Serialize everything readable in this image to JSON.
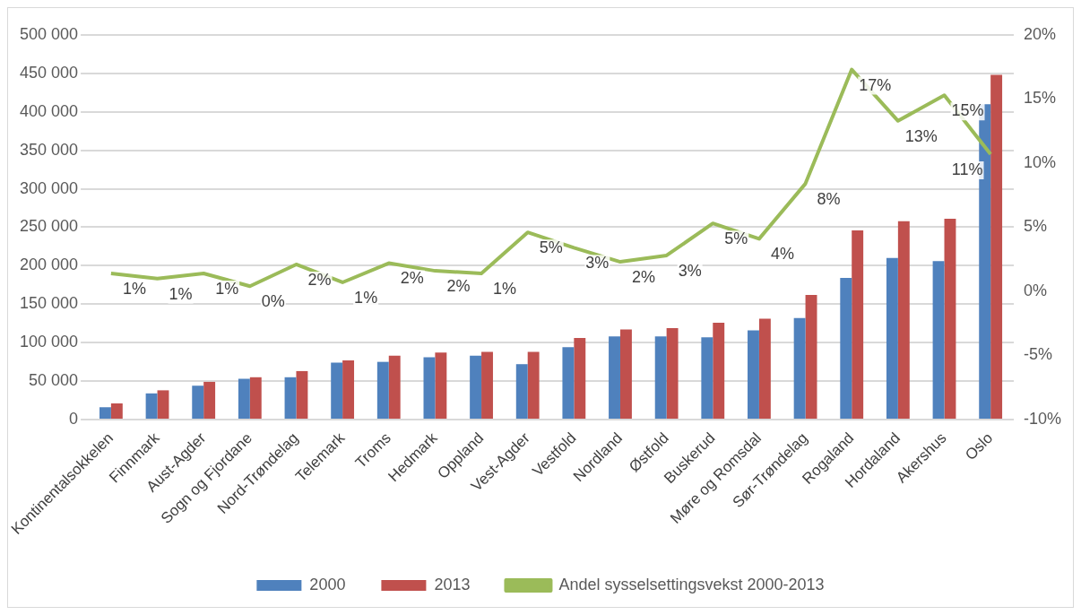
{
  "chart_data": {
    "type": "bar",
    "categories": [
      "Kontinentalsokkelen",
      "Finnmark",
      "Aust-Agder",
      "Sogn og Fjordane",
      "Nord-Trøndelag",
      "Telemark",
      "Troms",
      "Hedmark",
      "Oppland",
      "Vest-Agder",
      "Vestfold",
      "Nordland",
      "Østfold",
      "Buskerud",
      "Møre og Romsdal",
      "Sør-Trøndelag",
      "Rogaland",
      "Hordaland",
      "Akershus",
      "Oslo"
    ],
    "series": [
      {
        "name": "2000",
        "color": "#4f81bd",
        "values": [
          16000,
          34000,
          44000,
          53000,
          55000,
          74000,
          75000,
          81000,
          83000,
          72000,
          94000,
          108000,
          108000,
          107000,
          116000,
          132000,
          184000,
          210000,
          206000,
          410000
        ]
      },
      {
        "name": "2013",
        "color": "#c0504d",
        "values": [
          21000,
          38000,
          49000,
          55000,
          63000,
          77000,
          83000,
          87000,
          88000,
          88000,
          106000,
          117000,
          119000,
          126000,
          131000,
          162000,
          246000,
          258000,
          261000,
          448000
        ]
      },
      {
        "name": "Andel sysselsettingsvekst 2000-2013",
        "type": "line",
        "axis": "y2",
        "color": "#9bbb59",
        "values": [
          1.4,
          1.0,
          1.4,
          0.4,
          2.1,
          0.7,
          2.2,
          1.6,
          1.4,
          4.6,
          3.4,
          2.3,
          2.8,
          5.3,
          4.1,
          8.4,
          17.3,
          13.3,
          15.3,
          10.7
        ],
        "value_labels": [
          "1%",
          "1%",
          "1%",
          "0%",
          "2%",
          "1%",
          "2%",
          "2%",
          "1%",
          "5%",
          "3%",
          "2%",
          "3%",
          "5%",
          "4%",
          "8%",
          "17%",
          "13%",
          "15%",
          "11%"
        ]
      }
    ],
    "ylim": [
      0,
      500000
    ],
    "yticks": [
      {
        "value": 0,
        "label": "0"
      },
      {
        "value": 50000,
        "label": "50 000"
      },
      {
        "value": 100000,
        "label": "100 000"
      },
      {
        "value": 150000,
        "label": "150 000"
      },
      {
        "value": 200000,
        "label": "200 000"
      },
      {
        "value": 250000,
        "label": "250 000"
      },
      {
        "value": 300000,
        "label": "300 000"
      },
      {
        "value": 350000,
        "label": "350 000"
      },
      {
        "value": 400000,
        "label": "400 000"
      },
      {
        "value": 450000,
        "label": "450 000"
      },
      {
        "value": 500000,
        "label": "500 000"
      }
    ],
    "y2lim": [
      -10,
      20
    ],
    "y2ticks": [
      {
        "value": -10,
        "label": "-10%"
      },
      {
        "value": -5,
        "label": "-5%"
      },
      {
        "value": 0,
        "label": "0%"
      },
      {
        "value": 5,
        "label": "5%"
      },
      {
        "value": 10,
        "label": "10%"
      },
      {
        "value": 15,
        "label": "15%"
      },
      {
        "value": 20,
        "label": "20%"
      }
    ],
    "grid": "y",
    "legend": "bottom",
    "marker": "none"
  }
}
